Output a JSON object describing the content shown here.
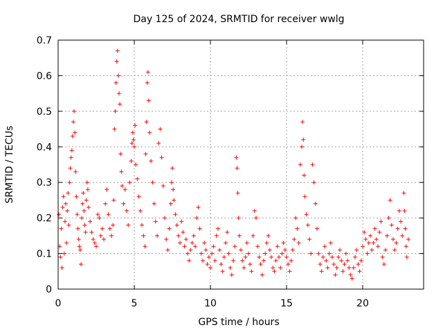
{
  "chart_data": {
    "type": "scatter",
    "title": "Day 125 of 2024, SRMTID for receiver wwlg",
    "xlabel": "GPS time / hours",
    "ylabel": "SRMTID / TECUs",
    "xlim": [
      0,
      24
    ],
    "ylim": [
      0,
      0.7
    ],
    "xticks": [
      0,
      5,
      10,
      15,
      20
    ],
    "yticks": [
      0,
      0.1,
      0.2,
      0.3,
      0.4,
      0.5,
      0.6,
      0.7
    ],
    "xtick_labels": [
      "0",
      "5",
      "10",
      "15",
      "20"
    ],
    "ytick_labels": [
      "0",
      "0.1",
      "0.2",
      "0.3",
      "0.4",
      "0.5",
      "0.6",
      "0.7"
    ],
    "grid": true,
    "marker": "plus",
    "marker_color": "#ff0000",
    "series": [
      {
        "name": "SRMTID",
        "points": [
          [
            0.05,
            0.21
          ],
          [
            0.1,
            0.12
          ],
          [
            0.15,
            0.09
          ],
          [
            0.2,
            0.17
          ],
          [
            0.25,
            0.06
          ],
          [
            0.3,
            0.23
          ],
          [
            0.35,
            0.26
          ],
          [
            0.4,
            0.1
          ],
          [
            0.45,
            0.19
          ],
          [
            0.5,
            0.24
          ],
          [
            0.55,
            0.13
          ],
          [
            0.6,
            0.22
          ],
          [
            0.65,
            0.27
          ],
          [
            0.7,
            0.18
          ],
          [
            0.75,
            0.3
          ],
          [
            0.8,
            0.34
          ],
          [
            0.85,
            0.37
          ],
          [
            0.9,
            0.39
          ],
          [
            0.95,
            0.43
          ],
          [
            1.0,
            0.47
          ],
          [
            1.05,
            0.5
          ],
          [
            1.1,
            0.44
          ],
          [
            1.15,
            0.33
          ],
          [
            1.2,
            0.26
          ],
          [
            1.25,
            0.21
          ],
          [
            1.3,
            0.17
          ],
          [
            1.35,
            0.14
          ],
          [
            1.4,
            0.12
          ],
          [
            1.45,
            0.11
          ],
          [
            1.5,
            0.07
          ],
          [
            1.55,
            0.2
          ],
          [
            1.6,
            0.24
          ],
          [
            1.65,
            0.27
          ],
          [
            1.7,
            0.22
          ],
          [
            1.75,
            0.18
          ],
          [
            1.8,
            0.16
          ],
          [
            1.85,
            0.25
          ],
          [
            1.9,
            0.3
          ],
          [
            1.95,
            0.28
          ],
          [
            2.0,
            0.23
          ],
          [
            2.1,
            0.19
          ],
          [
            2.2,
            0.16
          ],
          [
            2.3,
            0.14
          ],
          [
            2.4,
            0.13
          ],
          [
            2.5,
            0.12
          ],
          [
            2.6,
            0.21
          ],
          [
            2.7,
            0.2
          ],
          [
            2.8,
            0.15
          ],
          [
            2.9,
            0.17
          ],
          [
            3.0,
            0.14
          ],
          [
            3.1,
            0.24
          ],
          [
            3.2,
            0.28
          ],
          [
            3.3,
            0.21
          ],
          [
            3.4,
            0.17
          ],
          [
            3.5,
            0.15
          ],
          [
            3.6,
            0.18
          ],
          [
            3.65,
            0.25
          ],
          [
            3.7,
            0.45
          ],
          [
            3.75,
            0.5
          ],
          [
            3.8,
            0.58
          ],
          [
            3.85,
            0.64
          ],
          [
            3.9,
            0.67
          ],
          [
            3.95,
            0.6
          ],
          [
            4.0,
            0.55
          ],
          [
            4.05,
            0.52
          ],
          [
            4.1,
            0.38
          ],
          [
            4.15,
            0.33
          ],
          [
            4.2,
            0.29
          ],
          [
            4.3,
            0.24
          ],
          [
            4.4,
            0.28
          ],
          [
            4.5,
            0.22
          ],
          [
            4.6,
            0.18
          ],
          [
            4.7,
            0.3
          ],
          [
            4.8,
            0.36
          ],
          [
            4.85,
            0.41
          ],
          [
            4.9,
            0.44
          ],
          [
            4.95,
            0.42
          ],
          [
            5.0,
            0.4
          ],
          [
            5.05,
            0.46
          ],
          [
            5.1,
            0.35
          ],
          [
            5.2,
            0.31
          ],
          [
            5.3,
            0.26
          ],
          [
            5.4,
            0.22
          ],
          [
            5.5,
            0.18
          ],
          [
            5.6,
            0.15
          ],
          [
            5.7,
            0.12
          ],
          [
            5.75,
            0.38
          ],
          [
            5.8,
            0.47
          ],
          [
            5.85,
            0.58
          ],
          [
            5.9,
            0.61
          ],
          [
            5.95,
            0.53
          ],
          [
            6.0,
            0.44
          ],
          [
            6.1,
            0.36
          ],
          [
            6.2,
            0.3
          ],
          [
            6.3,
            0.24
          ],
          [
            6.4,
            0.19
          ],
          [
            6.5,
            0.15
          ],
          [
            6.6,
            0.41
          ],
          [
            6.7,
            0.45
          ],
          [
            6.8,
            0.37
          ],
          [
            6.9,
            0.29
          ],
          [
            7.0,
            0.2
          ],
          [
            7.1,
            0.14
          ],
          [
            7.2,
            0.11
          ],
          [
            7.3,
            0.17
          ],
          [
            7.4,
            0.24
          ],
          [
            7.45,
            0.3
          ],
          [
            7.5,
            0.34
          ],
          [
            7.55,
            0.28
          ],
          [
            7.6,
            0.25
          ],
          [
            7.7,
            0.21
          ],
          [
            7.8,
            0.18
          ],
          [
            7.9,
            0.15
          ],
          [
            8.0,
            0.13
          ],
          [
            8.1,
            0.19
          ],
          [
            8.2,
            0.16
          ],
          [
            8.3,
            0.12
          ],
          [
            8.4,
            0.14
          ],
          [
            8.5,
            0.1
          ],
          [
            8.6,
            0.08
          ],
          [
            8.7,
            0.11
          ],
          [
            8.8,
            0.13
          ],
          [
            8.9,
            0.15
          ],
          [
            9.0,
            0.12
          ],
          [
            9.1,
            0.2
          ],
          [
            9.2,
            0.23
          ],
          [
            9.3,
            0.17
          ],
          [
            9.4,
            0.1
          ],
          [
            9.5,
            0.08
          ],
          [
            9.6,
            0.13
          ],
          [
            9.7,
            0.11
          ],
          [
            9.8,
            0.07
          ],
          [
            9.9,
            0.09
          ],
          [
            10.0,
            0.06
          ],
          [
            10.1,
            0.1
          ],
          [
            10.2,
            0.12
          ],
          [
            10.3,
            0.08
          ],
          [
            10.4,
            0.15
          ],
          [
            10.5,
            0.17
          ],
          [
            10.6,
            0.11
          ],
          [
            10.7,
            0.07
          ],
          [
            10.8,
            0.05
          ],
          [
            10.9,
            0.09
          ],
          [
            11.0,
            0.13
          ],
          [
            11.1,
            0.16
          ],
          [
            11.2,
            0.1
          ],
          [
            11.3,
            0.06
          ],
          [
            11.4,
            0.04
          ],
          [
            11.5,
            0.08
          ],
          [
            11.6,
            0.12
          ],
          [
            11.7,
            0.37
          ],
          [
            11.75,
            0.34
          ],
          [
            11.8,
            0.27
          ],
          [
            11.85,
            0.2
          ],
          [
            11.9,
            0.15
          ],
          [
            12.0,
            0.11
          ],
          [
            12.1,
            0.08
          ],
          [
            12.2,
            0.06
          ],
          [
            12.3,
            0.09
          ],
          [
            12.4,
            0.13
          ],
          [
            12.5,
            0.1
          ],
          [
            12.6,
            0.07
          ],
          [
            12.7,
            0.05
          ],
          [
            12.8,
            0.15
          ],
          [
            12.9,
            0.22
          ],
          [
            13.0,
            0.2
          ],
          [
            13.1,
            0.12
          ],
          [
            13.2,
            0.09
          ],
          [
            13.3,
            0.07
          ],
          [
            13.4,
            0.04
          ],
          [
            13.5,
            0.08
          ],
          [
            13.6,
            0.1
          ],
          [
            13.7,
            0.13
          ],
          [
            13.8,
            0.15
          ],
          [
            13.9,
            0.11
          ],
          [
            14.0,
            0.09
          ],
          [
            14.1,
            0.06
          ],
          [
            14.2,
            0.05
          ],
          [
            14.3,
            0.08
          ],
          [
            14.4,
            0.12
          ],
          [
            14.5,
            0.09
          ],
          [
            14.6,
            0.06
          ],
          [
            14.7,
            0.1
          ],
          [
            14.8,
            0.13
          ],
          [
            14.9,
            0.11
          ],
          [
            15.0,
            0.09
          ],
          [
            15.1,
            0.07
          ],
          [
            15.2,
            0.05
          ],
          [
            15.3,
            0.08
          ],
          [
            15.4,
            0.11
          ],
          [
            15.5,
            0.14
          ],
          [
            15.6,
            0.2
          ],
          [
            15.7,
            0.17
          ],
          [
            15.8,
            0.13
          ],
          [
            15.9,
            0.35
          ],
          [
            16.0,
            0.4
          ],
          [
            16.05,
            0.47
          ],
          [
            16.1,
            0.42
          ],
          [
            16.15,
            0.32
          ],
          [
            16.2,
            0.26
          ],
          [
            16.3,
            0.21
          ],
          [
            16.4,
            0.18
          ],
          [
            16.5,
            0.14
          ],
          [
            16.6,
            0.1
          ],
          [
            16.7,
            0.35
          ],
          [
            16.8,
            0.3
          ],
          [
            16.9,
            0.24
          ],
          [
            17.0,
            0.17
          ],
          [
            17.1,
            0.1
          ],
          [
            17.2,
            0.07
          ],
          [
            17.3,
            0.05
          ],
          [
            17.4,
            0.09
          ],
          [
            17.5,
            0.12
          ],
          [
            17.6,
            0.08
          ],
          [
            17.7,
            0.06
          ],
          [
            17.8,
            0.1
          ],
          [
            17.9,
            0.13
          ],
          [
            18.0,
            0.09
          ],
          [
            18.1,
            0.07
          ],
          [
            18.2,
            0.04
          ],
          [
            18.3,
            0.06
          ],
          [
            18.4,
            0.09
          ],
          [
            18.5,
            0.11
          ],
          [
            18.6,
            0.08
          ],
          [
            18.7,
            0.05
          ],
          [
            18.8,
            0.07
          ],
          [
            18.9,
            0.1
          ],
          [
            19.0,
            0.08
          ],
          [
            19.1,
            0.06
          ],
          [
            19.2,
            0.04
          ],
          [
            19.3,
            0.03
          ],
          [
            19.4,
            0.06
          ],
          [
            19.5,
            0.09
          ],
          [
            19.6,
            0.11
          ],
          [
            19.7,
            0.07
          ],
          [
            19.8,
            0.05
          ],
          [
            19.9,
            0.08
          ],
          [
            20.0,
            0.12
          ],
          [
            20.1,
            0.16
          ],
          [
            20.2,
            0.14
          ],
          [
            20.3,
            0.1
          ],
          [
            20.4,
            0.13
          ],
          [
            20.5,
            0.15
          ],
          [
            20.6,
            0.11
          ],
          [
            20.7,
            0.13
          ],
          [
            20.8,
            0.17
          ],
          [
            20.9,
            0.14
          ],
          [
            21.0,
            0.12
          ],
          [
            21.1,
            0.16
          ],
          [
            21.2,
            0.19
          ],
          [
            21.3,
            0.09
          ],
          [
            21.4,
            0.07
          ],
          [
            21.5,
            0.11
          ],
          [
            21.6,
            0.15
          ],
          [
            21.7,
            0.2
          ],
          [
            21.8,
            0.25
          ],
          [
            21.9,
            0.18
          ],
          [
            22.0,
            0.14
          ],
          [
            22.1,
            0.11
          ],
          [
            22.2,
            0.13
          ],
          [
            22.3,
            0.17
          ],
          [
            22.4,
            0.22
          ],
          [
            22.5,
            0.19
          ],
          [
            22.6,
            0.15
          ],
          [
            22.7,
            0.27
          ],
          [
            22.75,
            0.22
          ],
          [
            22.8,
            0.17
          ],
          [
            22.85,
            0.12
          ],
          [
            22.9,
            0.09
          ],
          [
            23.0,
            0.14
          ]
        ]
      }
    ]
  }
}
